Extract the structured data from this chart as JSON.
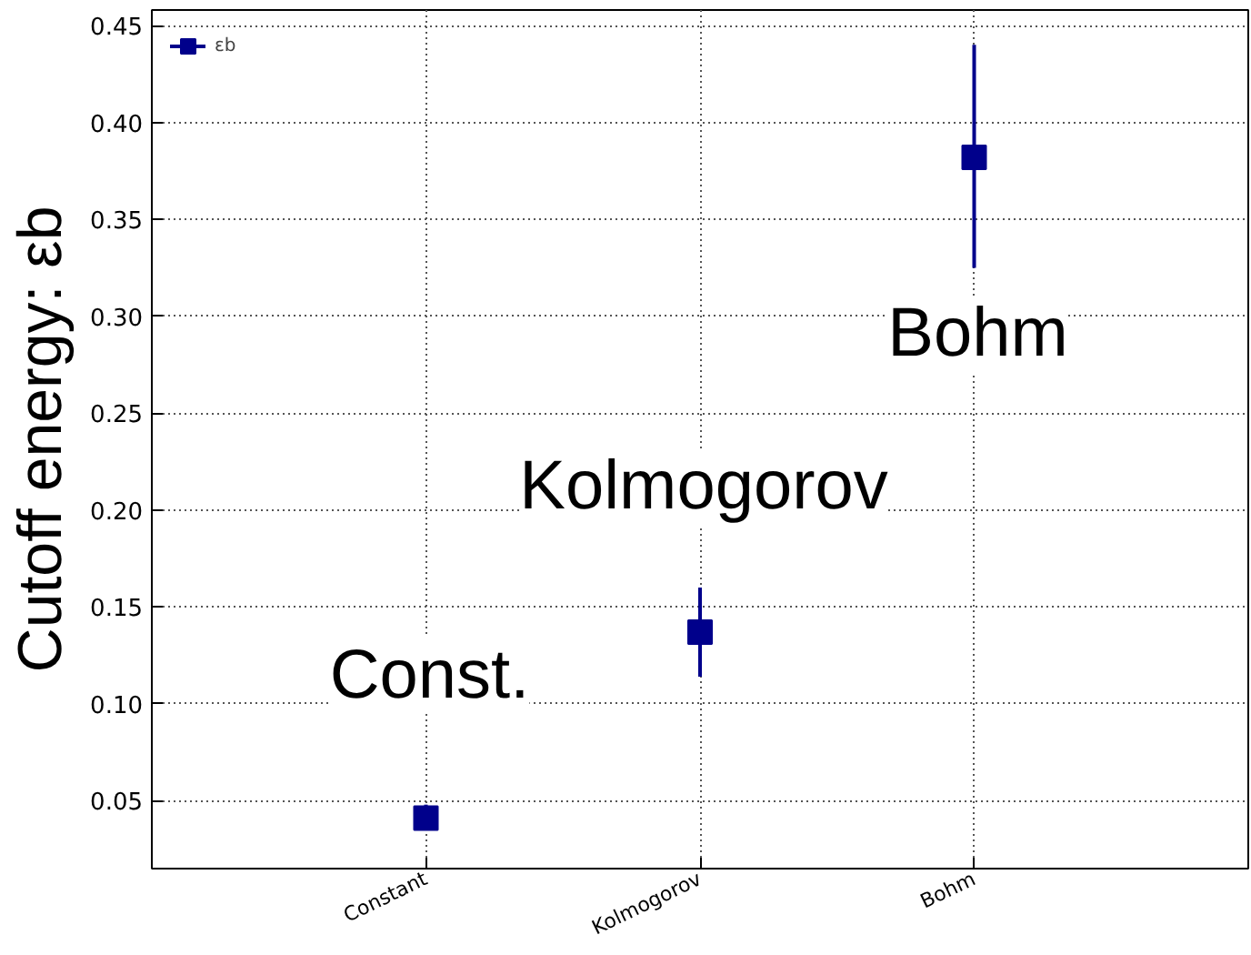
{
  "chart_data": {
    "type": "scatter",
    "ylabel": "Cutoff energy: εb",
    "categories": [
      "Constant",
      "Kolmogorov",
      "Bohm"
    ],
    "series": [
      {
        "name": "εb",
        "color": "#00008b",
        "values": [
          0.041,
          0.137,
          0.382
        ],
        "errors": [
          [
            0.037,
            0.048
          ],
          [
            0.114,
            0.16
          ],
          [
            0.325,
            0.44
          ]
        ]
      }
    ],
    "ylim": [
      0.015,
      0.458
    ],
    "yticks": [
      {
        "value": 0.05,
        "label": "0.05"
      },
      {
        "value": 0.1,
        "label": "0.10"
      },
      {
        "value": 0.15,
        "label": "0.15"
      },
      {
        "value": 0.2,
        "label": "0.20"
      },
      {
        "value": 0.25,
        "label": "0.25"
      },
      {
        "value": 0.3,
        "label": "0.30"
      },
      {
        "value": 0.35,
        "label": "0.35"
      },
      {
        "value": 0.4,
        "label": "0.40"
      },
      {
        "value": 0.45,
        "label": "0.45"
      }
    ],
    "annotations": [
      "Const.",
      "Kolmogorov",
      "Bohm"
    ],
    "grid": true,
    "legend": "top left",
    "marker": "square"
  }
}
